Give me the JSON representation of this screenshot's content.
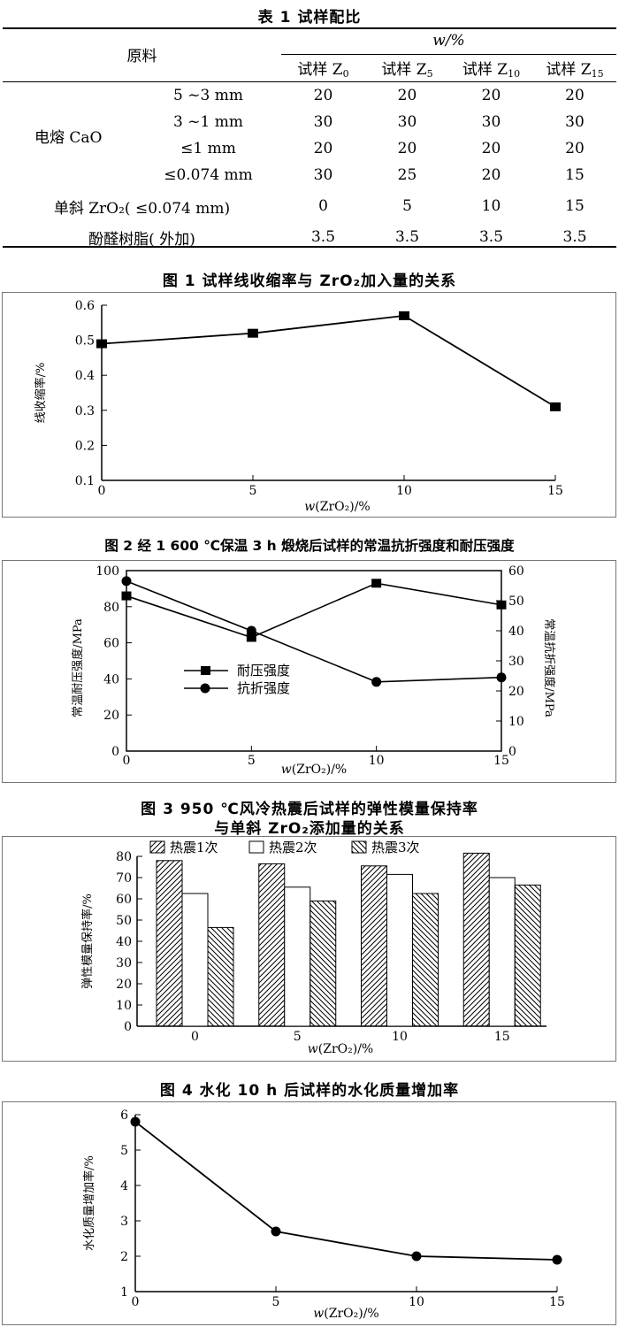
{
  "table1": {
    "title": "表 1 试样配比",
    "col_material": "原料",
    "col_w": "w/%",
    "samples": [
      "试样 Z",
      "试样 Z",
      "试样 Z",
      "试样 Z"
    ],
    "sample_subs": [
      "0",
      "5",
      "10",
      "15"
    ],
    "group_cao": "电熔 CaO",
    "rows": [
      {
        "label": "5 ~3 mm",
        "vals": [
          "20",
          "20",
          "20",
          "20"
        ]
      },
      {
        "label": "3 ~1 mm",
        "vals": [
          "30",
          "30",
          "30",
          "30"
        ]
      },
      {
        "label": "≤1 mm",
        "vals": [
          "20",
          "20",
          "20",
          "20"
        ]
      },
      {
        "label": "≤0.074 mm",
        "vals": [
          "30",
          "25",
          "20",
          "15"
        ]
      },
      {
        "label": "单斜 ZrO₂( ≤0.074 mm)",
        "vals": [
          "0",
          "5",
          "10",
          "15"
        ]
      },
      {
        "label": "酚醛树脂( 外加)",
        "vals": [
          "3.5",
          "3.5",
          "3.5",
          "3.5"
        ]
      }
    ]
  },
  "chart_data": [
    {
      "type": "line",
      "title": "图 1 试样线收缩率与 ZrO₂加入量的关系",
      "xlabel": "w(ZrO₂)/%",
      "ylabel": "线收缩率/%",
      "x": [
        0,
        5,
        10,
        15
      ],
      "values": [
        0.49,
        0.52,
        0.57,
        0.31
      ],
      "xticks": [
        "0",
        "5",
        "10",
        "15"
      ],
      "yticks": [
        "0.1",
        "0.2",
        "0.3",
        "0.4",
        "0.5",
        "0.6"
      ],
      "ylim": [
        0.1,
        0.6
      ],
      "xlim": [
        0,
        15
      ]
    },
    {
      "type": "line",
      "title": "图 2 经 1 600 ℃保温 3 h 煅烧后试样的常温抗折强度和耐压强度",
      "xlabel": "w(ZrO₂)/%",
      "ylabel_left": "常温耐压强度/MPa",
      "ylabel_right": "常温抗折强度/MPa",
      "x": [
        0,
        5,
        10,
        15
      ],
      "xticks": [
        "0",
        "5",
        "10",
        "15"
      ],
      "yticks_left": [
        "0",
        "20",
        "40",
        "60",
        "80",
        "100"
      ],
      "yticks_right": [
        "0",
        "10",
        "20",
        "30",
        "40",
        "50",
        "60"
      ],
      "ylim_left": [
        0,
        100
      ],
      "ylim_right": [
        0,
        60
      ],
      "series": [
        {
          "name": "耐压强度",
          "axis": "left",
          "marker": "square",
          "values": [
            86,
            63,
            93,
            81
          ]
        },
        {
          "name": "抗折强度",
          "axis": "right",
          "marker": "circle",
          "values": [
            56.5,
            40,
            23,
            24.5
          ]
        }
      ]
    },
    {
      "type": "bar",
      "title_line1": "图 3 950 ℃风冷热震后试样的弹性模量保持率",
      "title_line2": "与单斜 ZrO₂添加量的关系",
      "xlabel": "w(ZrO₂)/%",
      "ylabel": "弹性模量保持率/%",
      "categories": [
        "0",
        "5",
        "10",
        "15"
      ],
      "yticks": [
        "0",
        "10",
        "20",
        "30",
        "40",
        "50",
        "60",
        "70",
        "80"
      ],
      "ylim": [
        0,
        80
      ],
      "series": [
        {
          "name": "热震1次",
          "values": [
            78,
            76.5,
            75.5,
            81.5
          ]
        },
        {
          "name": "热震2次",
          "values": [
            62.5,
            65.5,
            71.5,
            70
          ]
        },
        {
          "name": "热震3次",
          "values": [
            46.5,
            59,
            62.5,
            66.5
          ]
        }
      ]
    },
    {
      "type": "line",
      "title": "图 4 水化 10 h 后试样的水化质量增加率",
      "xlabel": "w(ZrO₂)/%",
      "ylabel": "水化质量增加率/%",
      "x": [
        0,
        5,
        10,
        15
      ],
      "values": [
        5.8,
        2.7,
        2.0,
        1.9
      ],
      "xticks": [
        "0",
        "5",
        "10",
        "15"
      ],
      "yticks": [
        "1",
        "2",
        "3",
        "4",
        "5",
        "6"
      ],
      "ylim": [
        1,
        6
      ],
      "xlim": [
        0,
        15
      ]
    }
  ]
}
